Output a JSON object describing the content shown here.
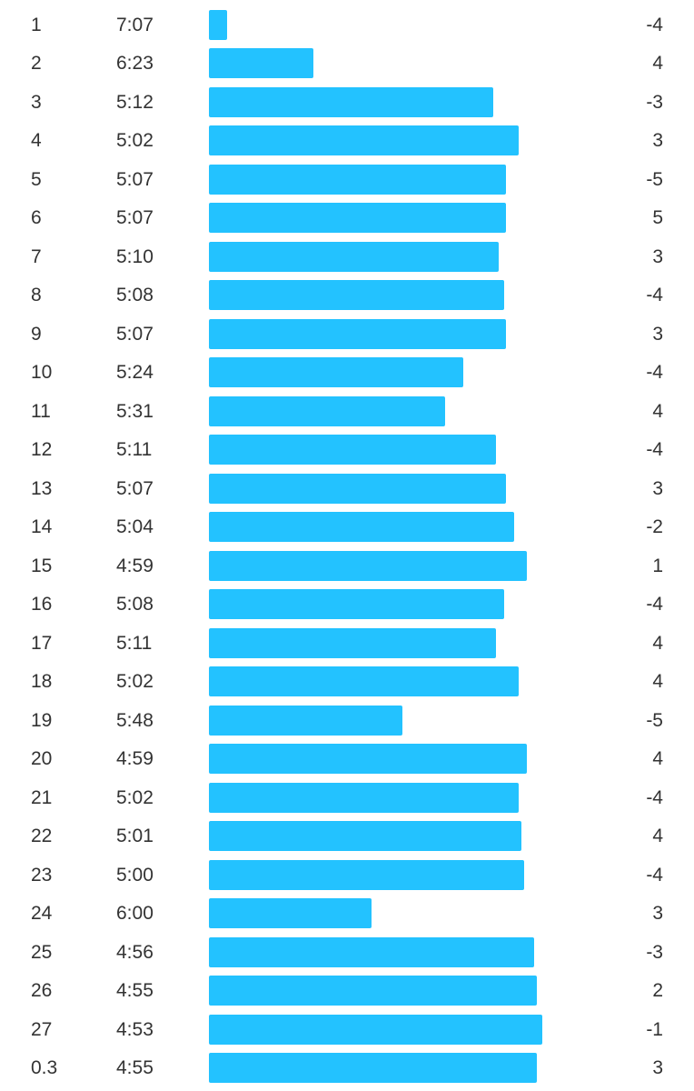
{
  "colors": {
    "bar": "#23c2ff",
    "text": "#333333",
    "background": "#ffffff"
  },
  "splits": [
    {
      "km": "1",
      "pace": "7:07",
      "elevation": "-4"
    },
    {
      "km": "2",
      "pace": "6:23",
      "elevation": "4"
    },
    {
      "km": "3",
      "pace": "5:12",
      "elevation": "-3"
    },
    {
      "km": "4",
      "pace": "5:02",
      "elevation": "3"
    },
    {
      "km": "5",
      "pace": "5:07",
      "elevation": "-5"
    },
    {
      "km": "6",
      "pace": "5:07",
      "elevation": "5"
    },
    {
      "km": "7",
      "pace": "5:10",
      "elevation": "3"
    },
    {
      "km": "8",
      "pace": "5:08",
      "elevation": "-4"
    },
    {
      "km": "9",
      "pace": "5:07",
      "elevation": "3"
    },
    {
      "km": "10",
      "pace": "5:24",
      "elevation": "-4"
    },
    {
      "km": "11",
      "pace": "5:31",
      "elevation": "4"
    },
    {
      "km": "12",
      "pace": "5:11",
      "elevation": "-4"
    },
    {
      "km": "13",
      "pace": "5:07",
      "elevation": "3"
    },
    {
      "km": "14",
      "pace": "5:04",
      "elevation": "-2"
    },
    {
      "km": "15",
      "pace": "4:59",
      "elevation": "1"
    },
    {
      "km": "16",
      "pace": "5:08",
      "elevation": "-4"
    },
    {
      "km": "17",
      "pace": "5:11",
      "elevation": "4"
    },
    {
      "km": "18",
      "pace": "5:02",
      "elevation": "4"
    },
    {
      "km": "19",
      "pace": "5:48",
      "elevation": "-5"
    },
    {
      "km": "20",
      "pace": "4:59",
      "elevation": "4"
    },
    {
      "km": "21",
      "pace": "5:02",
      "elevation": "-4"
    },
    {
      "km": "22",
      "pace": "5:01",
      "elevation": "4"
    },
    {
      "km": "23",
      "pace": "5:00",
      "elevation": "-4"
    },
    {
      "km": "24",
      "pace": "6:00",
      "elevation": "3"
    },
    {
      "km": "25",
      "pace": "4:56",
      "elevation": "-3"
    },
    {
      "km": "26",
      "pace": "4:55",
      "elevation": "2"
    },
    {
      "km": "27",
      "pace": "4:53",
      "elevation": "-1"
    },
    {
      "km": "0.3",
      "pace": "4:55",
      "elevation": "3"
    }
  ]
}
